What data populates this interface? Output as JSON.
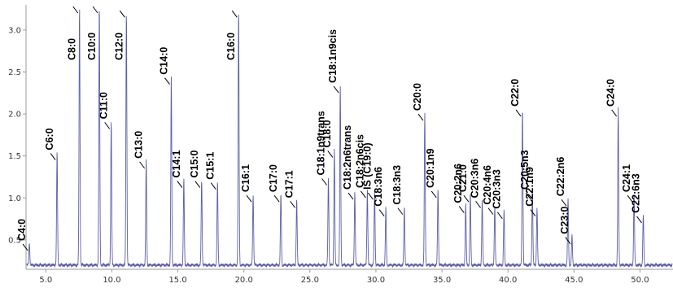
{
  "chart_data": {
    "type": "line",
    "title": "",
    "xlabel": "",
    "ylabel": "",
    "xlim": [
      3.5,
      52.5
    ],
    "ylim": [
      0.15,
      3.3
    ],
    "grid": false,
    "legend": "none",
    "baseline": 0.2,
    "colors": {
      "trace": "#5c5ea8",
      "axis": "#999999",
      "label": "#000000"
    },
    "x_ticks": [
      {
        "value": 5,
        "label": "5.0"
      },
      {
        "value": 10,
        "label": "10.0"
      },
      {
        "value": 15,
        "label": "15.0"
      },
      {
        "value": 20,
        "label": "20.0"
      },
      {
        "value": 25,
        "label": "25.0"
      },
      {
        "value": 30,
        "label": "30.0"
      },
      {
        "value": 35,
        "label": "35.0"
      },
      {
        "value": 40,
        "label": "40.0"
      },
      {
        "value": 45,
        "label": "45.0"
      },
      {
        "value": 50,
        "label": "50.0"
      }
    ],
    "y_ticks": [
      {
        "value": 0.5,
        "label": "0.5"
      },
      {
        "value": 1.0,
        "label": "1.0"
      },
      {
        "value": 1.5,
        "label": "1.5"
      },
      {
        "value": 2.0,
        "label": "2.0"
      },
      {
        "value": 2.5,
        "label": "2.5"
      },
      {
        "value": 3.0,
        "label": "3.0"
      }
    ],
    "peaks": [
      {
        "name": "C4:0",
        "rt": 3.75,
        "height": 0.47
      },
      {
        "name": "C6:0",
        "rt": 5.85,
        "height": 1.55
      },
      {
        "name": "C8:0",
        "rt": 7.55,
        "height": 3.3
      },
      {
        "name": "C10:0",
        "rt": 9.05,
        "height": 3.3
      },
      {
        "name": "C11:0",
        "rt": 9.95,
        "height": 1.92
      },
      {
        "name": "C12:0",
        "rt": 11.1,
        "height": 3.25
      },
      {
        "name": "C13:0",
        "rt": 12.6,
        "height": 1.45
      },
      {
        "name": "C14:0",
        "rt": 14.5,
        "height": 2.45
      },
      {
        "name": "C14:1",
        "rt": 15.45,
        "height": 1.22
      },
      {
        "name": "C15:0",
        "rt": 16.8,
        "height": 1.22
      },
      {
        "name": "C15:1",
        "rt": 18.0,
        "height": 1.2
      },
      {
        "name": "C16:0",
        "rt": 19.6,
        "height": 3.25
      },
      {
        "name": "C16:1",
        "rt": 20.7,
        "height": 1.05
      },
      {
        "name": "C17:0",
        "rt": 22.8,
        "height": 1.05
      },
      {
        "name": "C17:1",
        "rt": 24.0,
        "height": 0.98
      },
      {
        "name": "C18:1n9trans",
        "rt": 26.4,
        "height": 1.25
      },
      {
        "name": "C18:0",
        "rt": 26.85,
        "height": 1.58
      },
      {
        "name": "C18:1n9cis",
        "rt": 27.3,
        "height": 2.35
      },
      {
        "name": "C18:2n6trans",
        "rt": 28.4,
        "height": 1.08
      },
      {
        "name": "C18:2n6cis",
        "rt": 29.35,
        "height": 1.1
      },
      {
        "name": "IS (C19:0)",
        "rt": 29.9,
        "height": 1.08
      },
      {
        "name": "C18:3n6",
        "rt": 30.75,
        "height": 0.88
      },
      {
        "name": "C18:3n3",
        "rt": 32.15,
        "height": 0.9
      },
      {
        "name": "C20:0",
        "rt": 33.7,
        "height": 2.02
      },
      {
        "name": "C20:1n9",
        "rt": 34.7,
        "height": 1.1
      },
      {
        "name": "C20:2n6",
        "rt": 36.8,
        "height": 0.92
      },
      {
        "name": "C21:0",
        "rt": 37.15,
        "height": 1.05
      },
      {
        "name": "C20:3n6",
        "rt": 38.05,
        "height": 0.98
      },
      {
        "name": "C20:4n6",
        "rt": 39.0,
        "height": 0.9
      },
      {
        "name": "C20:3n3",
        "rt": 39.7,
        "height": 0.85
      },
      {
        "name": "C22:0",
        "rt": 41.1,
        "height": 2.07
      },
      {
        "name": "C20:5n3",
        "rt": 41.85,
        "height": 1.08
      },
      {
        "name": "C22:1n9",
        "rt": 42.2,
        "height": 0.88
      },
      {
        "name": "C22:2n6",
        "rt": 44.55,
        "height": 1.0
      },
      {
        "name": "C23:0",
        "rt": 44.85,
        "height": 0.55
      },
      {
        "name": "C24:0",
        "rt": 48.35,
        "height": 2.07
      },
      {
        "name": "C24:1",
        "rt": 49.55,
        "height": 1.05
      },
      {
        "name": "C22:6n3",
        "rt": 50.25,
        "height": 0.8
      }
    ]
  }
}
